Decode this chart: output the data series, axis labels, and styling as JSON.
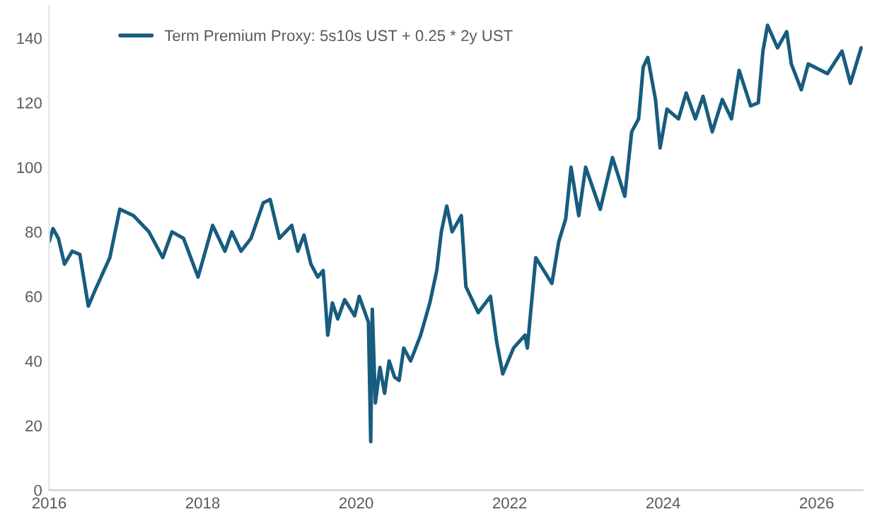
{
  "chart_data": {
    "type": "line",
    "x": [
      2016.0,
      2016.05,
      2016.12,
      2016.2,
      2016.3,
      2016.4,
      2016.51,
      2016.6,
      2016.79,
      2016.92,
      2017.1,
      2017.3,
      2017.48,
      2017.6,
      2017.75,
      2017.94,
      2018.13,
      2018.29,
      2018.38,
      2018.5,
      2018.63,
      2018.79,
      2018.88,
      2019.0,
      2019.16,
      2019.24,
      2019.32,
      2019.41,
      2019.5,
      2019.57,
      2019.63,
      2019.69,
      2019.76,
      2019.85,
      2019.98,
      2020.04,
      2020.16,
      2020.19,
      2020.21,
      2020.25,
      2020.31,
      2020.37,
      2020.43,
      2020.5,
      2020.56,
      2020.62,
      2020.71,
      2020.84,
      2020.96,
      2021.05,
      2021.11,
      2021.18,
      2021.25,
      2021.37,
      2021.43,
      2021.59,
      2021.75,
      2021.83,
      2021.91,
      2022.05,
      2022.2,
      2022.23,
      2022.34,
      2022.55,
      2022.64,
      2022.73,
      2022.8,
      2022.9,
      2022.99,
      2023.18,
      2023.34,
      2023.5,
      2023.59,
      2023.68,
      2023.74,
      2023.8,
      2023.9,
      2023.96,
      2024.05,
      2024.2,
      2024.3,
      2024.42,
      2024.52,
      2024.64,
      2024.77,
      2024.89,
      2024.99,
      2025.14,
      2025.24,
      2025.3,
      2025.36,
      2025.49,
      2025.61,
      2025.67,
      2025.8,
      2025.89,
      2026.14,
      2026.33,
      2026.44,
      2026.58
    ],
    "series": [
      {
        "name": "Term Premium Proxy: 5s10s UST + 0.25 * 2y UST",
        "color": "#185c7e",
        "values": [
          77,
          81,
          78,
          70,
          74,
          73,
          57,
          62,
          72,
          87,
          85,
          80,
          72,
          80,
          78,
          66,
          82,
          74,
          80,
          74,
          78,
          89,
          90,
          78,
          82,
          74,
          79,
          70,
          66,
          68,
          48,
          58,
          53,
          59,
          54,
          60,
          52,
          15,
          56,
          27,
          38,
          30,
          40,
          35,
          34,
          44,
          40,
          48,
          58,
          68,
          80,
          88,
          80,
          85,
          63,
          55,
          60,
          46,
          36,
          44,
          48,
          44,
          72,
          64,
          77,
          84,
          100,
          85,
          100,
          87,
          103,
          91,
          111,
          115,
          131,
          134,
          121,
          106,
          118,
          115,
          123,
          115,
          122,
          111,
          121,
          115,
          130,
          119,
          120,
          136,
          144,
          137,
          142,
          132,
          124,
          132,
          129,
          136,
          126,
          137
        ]
      }
    ],
    "xlim": [
      2016,
      2026.6
    ],
    "xticks": [
      2016,
      2018,
      2020,
      2022,
      2024,
      2026
    ],
    "ylim": [
      0,
      150
    ],
    "yticks": [
      0,
      20,
      40,
      60,
      80,
      100,
      120,
      140
    ],
    "grid": false,
    "legend": "top left"
  }
}
